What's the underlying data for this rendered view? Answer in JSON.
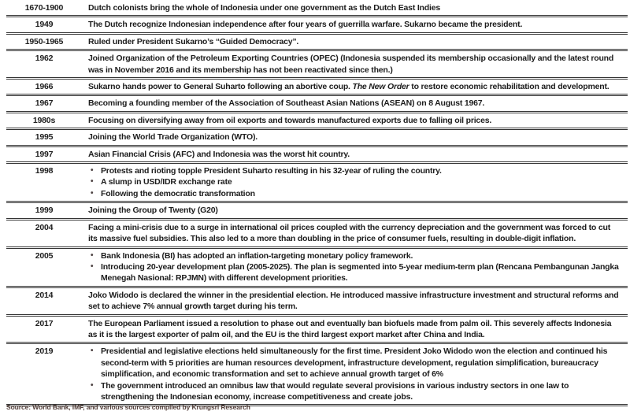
{
  "timeline": {
    "rows": [
      {
        "year": "1670-1900",
        "text": "Dutch colonists bring the whole of Indonesia under one government as the Dutch East Indies"
      },
      {
        "year": "1949",
        "text": "The Dutch recognize Indonesian independence after four years of guerrilla warfare. Sukarno became the president."
      },
      {
        "year": "1950-1965",
        "text": "Ruled under President Sukarno’s “Guided Democracy”."
      },
      {
        "year": "1962",
        "text": "Joined Organization of the Petroleum Exporting Countries (OPEC) (Indonesia suspended its membership occasionally and the latest round was in November 2016 and its membership has not been reactivated since then.)"
      },
      {
        "year": "1966",
        "text_pre": "Sukarno hands power to General Suharto following an abortive coup. ",
        "text_italic": "The New Order",
        "text_post": " to restore economic rehabilitation and development."
      },
      {
        "year": "1967",
        "text": "Becoming a founding member of the Association of Southeast Asian Nations (ASEAN) on 8 August 1967."
      },
      {
        "year": "1980s",
        "text": "Focusing on diversifying away from oil exports and towards manufactured exports due to falling oil prices."
      },
      {
        "year": "1995",
        "text": "Joining the World Trade Organization (WTO)."
      },
      {
        "year": "1997",
        "text": "Asian Financial Crisis (AFC) and Indonesia was the worst hit country."
      },
      {
        "year": "1998",
        "bullets": [
          "Protests and rioting topple President Suharto resulting in his 32-year of ruling the country.",
          "A slump in USD/IDR exchange rate",
          "Following the democratic transformation"
        ]
      },
      {
        "year": "1999",
        "text": "Joining the Group of Twenty (G20)"
      },
      {
        "year": "2004",
        "text": "Facing a mini-crisis due to a surge in international oil prices coupled with the currency depreciation and the government was forced to cut its massive fuel subsidies. This also led to a more than doubling in the price of consumer fuels, resulting in double-digit inflation."
      },
      {
        "year": "2005",
        "bullets": [
          "Bank Indonesia (BI) has adopted an inflation-targeting monetary policy framework.",
          "Introducing 20-year development plan (2005-2025). The plan is segmented into 5-year medium-term plan (Rencana Pembangunan Jangka Menegah Nasional: RPJMN) with different development priorities."
        ]
      },
      {
        "year": "2014",
        "text": "Joko Widodo is declared the winner in the presidential election. He introduced massive infrastructure investment and structural reforms and set to achieve 7% annual growth target during his term."
      },
      {
        "year": "2017",
        "text": "The European Parliament issued a resolution to phase out and eventually ban biofuels made from palm oil. This severely affects Indonesia as it is the largest exporter of palm oil, and the EU is the third largest export market after China and India."
      },
      {
        "year": "2019",
        "bullets": [
          "Presidential and legislative elections held simultaneously for the first time. President Joko Widodo won the election and continued his second-term with 5 priorities are human resources development, infrastructure development, regulation simplification, bureaucracy simplification, and economic transformation and set to achieve annual growth target of 6%",
          "The government introduced an omnibus law that would regulate several provisions in various industry sectors in one law to strengthening the Indonesian economy, increase competitiveness and create jobs."
        ]
      }
    ]
  },
  "footer": {
    "source_text": "Source: World Bank, IMF,  and various sources compiled by Krungsri Research"
  },
  "colors": {
    "row_text": "#1d1d1d",
    "separator": "#343434",
    "footer_text": "#55413c",
    "background": "#ffffff"
  }
}
